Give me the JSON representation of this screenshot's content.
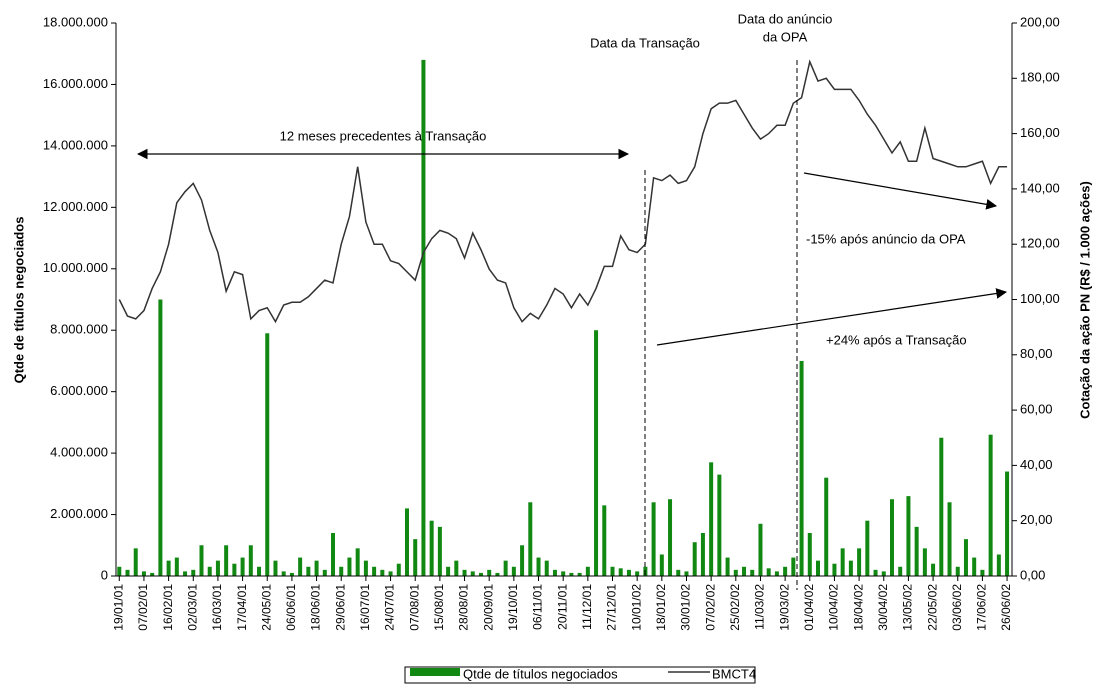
{
  "chart_data": {
    "type": "bar_line",
    "y_label": "Qtde de títulos negociados",
    "y2_label": "Cotação da ação PN (R$ / 1.000 ações)",
    "annotations": {
      "transaction_period": "12 meses precedentes à Transação",
      "transaction_date": "Data da Transação",
      "opa_date_line1": "Data do anúncio",
      "opa_date_line2": "da OPA",
      "after_opa": "-15% após anúncio da OPA",
      "after_transaction": "+24% após a Transação"
    },
    "categories": [
      "19/01/01",
      null,
      null,
      "07/02/01",
      null,
      null,
      "16/02/01",
      null,
      null,
      "02/03/01",
      null,
      null,
      "16/03/01",
      null,
      null,
      "17/04/01",
      null,
      null,
      "24/05/01",
      null,
      null,
      "06/06/01",
      null,
      null,
      "18/06/01",
      null,
      null,
      "29/06/01",
      null,
      null,
      "16/07/01",
      null,
      null,
      "24/07/01",
      null,
      null,
      "07/08/01",
      null,
      null,
      "15/08/01",
      null,
      null,
      "28/08/01",
      null,
      null,
      "20/09/01",
      null,
      null,
      "19/10/01",
      null,
      null,
      "06/11/01",
      null,
      null,
      "20/11/01",
      null,
      null,
      "11/12/01",
      null,
      null,
      "27/12/01",
      null,
      null,
      "10/01/02",
      null,
      null,
      "18/01/02",
      null,
      null,
      "30/01/02",
      null,
      null,
      "07/02/02",
      null,
      null,
      "25/02/02",
      null,
      null,
      "11/03/02",
      null,
      null,
      "19/03/02",
      null,
      null,
      "01/04/02",
      null,
      null,
      "10/04/02",
      null,
      null,
      "18/04/02",
      null,
      null,
      "30/04/02",
      null,
      null,
      "13/05/02",
      null,
      null,
      "22/05/02",
      null,
      null,
      "03/06/02",
      null,
      null,
      "17/06/02",
      null,
      null,
      "26/06/02"
    ],
    "series": [
      {
        "name": "Qtde de títulos negociados",
        "type": "bar",
        "color": "#118811",
        "values": [
          300000,
          200000,
          900000,
          150000,
          100000,
          9000000,
          500000,
          600000,
          150000,
          200000,
          1000000,
          300000,
          500000,
          1000000,
          400000,
          600000,
          1000000,
          300000,
          7900000,
          500000,
          150000,
          100000,
          600000,
          300000,
          500000,
          200000,
          1400000,
          300000,
          600000,
          900000,
          500000,
          300000,
          200000,
          150000,
          400000,
          2200000,
          1200000,
          16800000,
          1800000,
          1600000,
          300000,
          500000,
          200000,
          150000,
          100000,
          200000,
          100000,
          500000,
          300000,
          1000000,
          2400000,
          600000,
          500000,
          200000,
          150000,
          100000,
          100000,
          300000,
          8000000,
          2300000,
          300000,
          250000,
          200000,
          150000,
          300000,
          2400000,
          700000,
          2500000,
          200000,
          150000,
          1100000,
          1400000,
          3700000,
          3300000,
          600000,
          200000,
          300000,
          200000,
          1700000,
          250000,
          150000,
          300000,
          600000,
          7000000,
          1400000,
          500000,
          3200000,
          400000,
          900000,
          500000,
          900000,
          1800000,
          200000,
          150000,
          2500000,
          300000,
          2600000,
          1600000,
          900000,
          400000,
          4500000,
          2400000,
          300000,
          1200000,
          600000,
          200000,
          4600000,
          700000,
          3400000
        ]
      },
      {
        "name": "BMCT4",
        "type": "line",
        "axis": "y2",
        "color": "#333333",
        "values": [
          100,
          94,
          93,
          96,
          104,
          110,
          120,
          135,
          139,
          142,
          136,
          125,
          117,
          103,
          110,
          109,
          93,
          96,
          97,
          92,
          98,
          99,
          99,
          101,
          104,
          107,
          106,
          120,
          130,
          148,
          128,
          120,
          120,
          114,
          113,
          110,
          107,
          117,
          122,
          125,
          124,
          122,
          115,
          124,
          118,
          111,
          107,
          106,
          97,
          92,
          95,
          93,
          98,
          104,
          102,
          97,
          102,
          98,
          104,
          112,
          112,
          123,
          118,
          117,
          120,
          144,
          143,
          145,
          142,
          143,
          148,
          160,
          169,
          171,
          171,
          172,
          167,
          162,
          158,
          160,
          163,
          163,
          171,
          173,
          186,
          179,
          180,
          176,
          176,
          176,
          172,
          167,
          163,
          158,
          153,
          157,
          150,
          150,
          162,
          151,
          150,
          149,
          148,
          148,
          149,
          150,
          142,
          148,
          148
        ]
      }
    ],
    "ylim": [
      0,
      18000000
    ],
    "yticks": [
      {
        "value": 0,
        "label": "0"
      },
      {
        "value": 2000000,
        "label": "2.000.000"
      },
      {
        "value": 4000000,
        "label": "4.000.000"
      },
      {
        "value": 6000000,
        "label": "6.000.000"
      },
      {
        "value": 8000000,
        "label": "8.000.000"
      },
      {
        "value": 10000000,
        "label": "10.000.000"
      },
      {
        "value": 12000000,
        "label": "12.000.000"
      },
      {
        "value": 14000000,
        "label": "14.000.000"
      },
      {
        "value": 16000000,
        "label": "16.000.000"
      },
      {
        "value": 18000000,
        "label": "18.000.000"
      }
    ],
    "y2lim": [
      0,
      200
    ],
    "y2ticks": [
      {
        "value": 0,
        "label": "0,00"
      },
      {
        "value": 20,
        "label": "20,00"
      },
      {
        "value": 40,
        "label": "40,00"
      },
      {
        "value": 60,
        "label": "60,00"
      },
      {
        "value": 80,
        "label": "80,00"
      },
      {
        "value": 100,
        "label": "100,00"
      },
      {
        "value": 120,
        "label": "120,00"
      },
      {
        "value": 140,
        "label": "140,00"
      },
      {
        "value": 160,
        "label": "160,00"
      },
      {
        "value": 180,
        "label": "180,00"
      },
      {
        "value": 200,
        "label": "200,00"
      }
    ],
    "legend": "bottom"
  }
}
